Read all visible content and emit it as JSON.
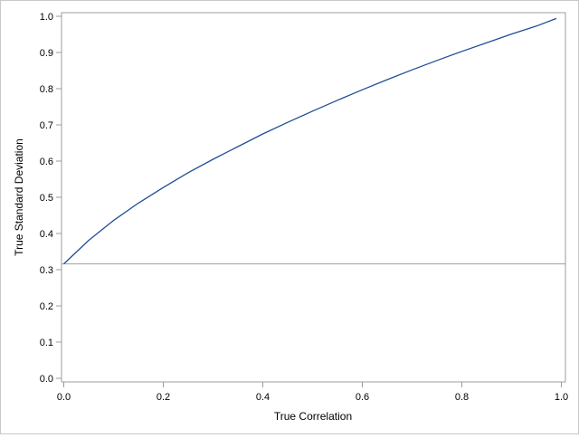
{
  "chart_data": {
    "type": "line",
    "title": "",
    "xlabel": "True Correlation",
    "ylabel": "True Standard Deviation",
    "xlim": [
      0.0,
      1.0
    ],
    "ylim": [
      0.0,
      1.0
    ],
    "x_ticks": [
      "0.0",
      "0.2",
      "0.4",
      "0.6",
      "0.8",
      "1.0"
    ],
    "y_ticks": [
      "0.0",
      "0.1",
      "0.2",
      "0.3",
      "0.4",
      "0.5",
      "0.6",
      "0.7",
      "0.8",
      "0.9",
      "1.0"
    ],
    "grid": false,
    "legend": "none",
    "series": [
      {
        "color": "#1f4e96",
        "x": [
          0.0,
          0.05,
          0.1,
          0.15,
          0.2,
          0.25,
          0.3,
          0.35,
          0.4,
          0.45,
          0.5,
          0.55,
          0.6,
          0.65,
          0.7,
          0.75,
          0.8,
          0.85,
          0.9,
          0.95,
          0.99
        ],
        "y": [
          0.316,
          0.381,
          0.436,
          0.484,
          0.527,
          0.568,
          0.605,
          0.64,
          0.675,
          0.707,
          0.738,
          0.768,
          0.797,
          0.825,
          0.852,
          0.878,
          0.903,
          0.927,
          0.951,
          0.973,
          0.994
        ]
      }
    ],
    "reference_lines": [
      {
        "axis": "y",
        "value": 0.316,
        "color": "#a0a0a0"
      }
    ]
  }
}
